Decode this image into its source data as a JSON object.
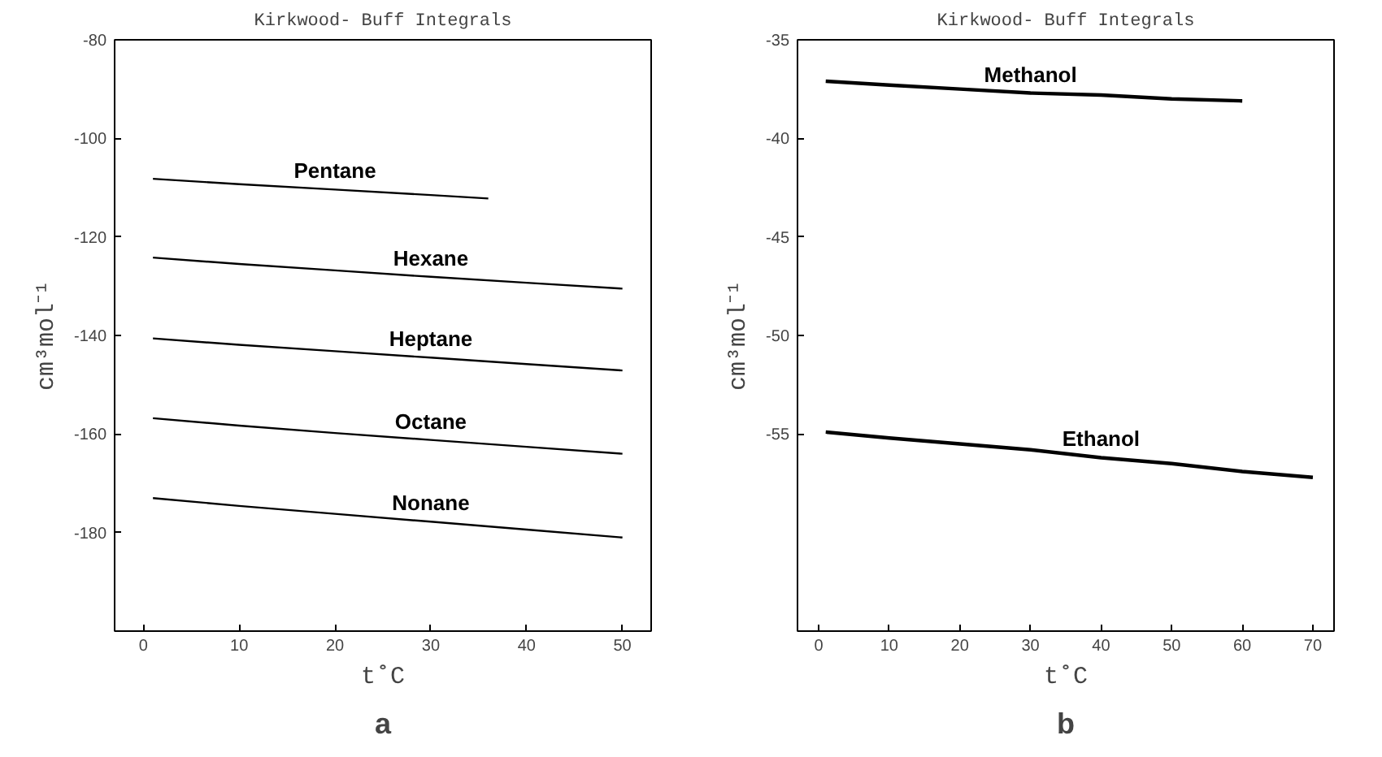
{
  "chart_data": [
    {
      "type": "line",
      "title": "Kirkwood- Buff Integrals",
      "xlabel": "t˚C",
      "ylabel": "cm³mol⁻¹",
      "annotations": [
        "a"
      ],
      "xlim": [
        -3,
        53
      ],
      "ylim": [
        -200,
        -80
      ],
      "xticks": [
        0,
        10,
        20,
        30,
        40,
        50
      ],
      "yticks": [
        -80,
        -100,
        -120,
        -140,
        -160,
        -180
      ],
      "grid": false,
      "line_style": "solid",
      "marker": "none",
      "series": [
        {
          "name": "Pentane",
          "color": "#000000",
          "x": [
            1,
            10,
            20,
            30,
            36
          ],
          "values": [
            -108.2,
            -109.3,
            -110.4,
            -111.5,
            -112.2
          ]
        },
        {
          "name": "Hexane",
          "color": "#000000",
          "x": [
            1,
            10,
            20,
            30,
            40,
            50
          ],
          "values": [
            -124.2,
            -125.5,
            -126.8,
            -128.1,
            -129.3,
            -130.5
          ]
        },
        {
          "name": "Heptane",
          "color": "#000000",
          "x": [
            1,
            10,
            20,
            30,
            40,
            50
          ],
          "values": [
            -140.6,
            -141.9,
            -143.2,
            -144.5,
            -145.8,
            -147.1
          ]
        },
        {
          "name": "Octane",
          "color": "#000000",
          "x": [
            1,
            10,
            20,
            30,
            40,
            50
          ],
          "values": [
            -156.8,
            -158.3,
            -159.8,
            -161.2,
            -162.6,
            -164.0
          ]
        },
        {
          "name": "Nonane",
          "color": "#000000",
          "x": [
            1,
            10,
            20,
            30,
            40,
            50
          ],
          "values": [
            -173.0,
            -174.6,
            -176.2,
            -177.8,
            -179.4,
            -181.0
          ]
        }
      ]
    },
    {
      "type": "line",
      "title": "Kirkwood- Buff Integrals",
      "xlabel": "t˚C",
      "ylabel": "cm³mol⁻¹",
      "annotations": [
        "b"
      ],
      "xlim": [
        -3,
        73
      ],
      "ylim": [
        -65,
        -35
      ],
      "xticks": [
        0,
        10,
        20,
        30,
        40,
        50,
        60,
        70
      ],
      "yticks": [
        -35,
        -40,
        -45,
        -50,
        -55
      ],
      "grid": false,
      "line_style": "solid",
      "marker": "none",
      "series": [
        {
          "name": "Methanol",
          "color": "#000000",
          "x": [
            1,
            10,
            20,
            30,
            40,
            50,
            60
          ],
          "values": [
            -37.1,
            -37.3,
            -37.5,
            -37.7,
            -37.8,
            -38.0,
            -38.1
          ]
        },
        {
          "name": "Ethanol",
          "color": "#000000",
          "x": [
            1,
            10,
            20,
            30,
            40,
            50,
            60,
            70
          ],
          "values": [
            -54.9,
            -55.2,
            -55.5,
            -55.8,
            -56.2,
            -56.5,
            -56.9,
            -57.2
          ]
        }
      ]
    }
  ]
}
